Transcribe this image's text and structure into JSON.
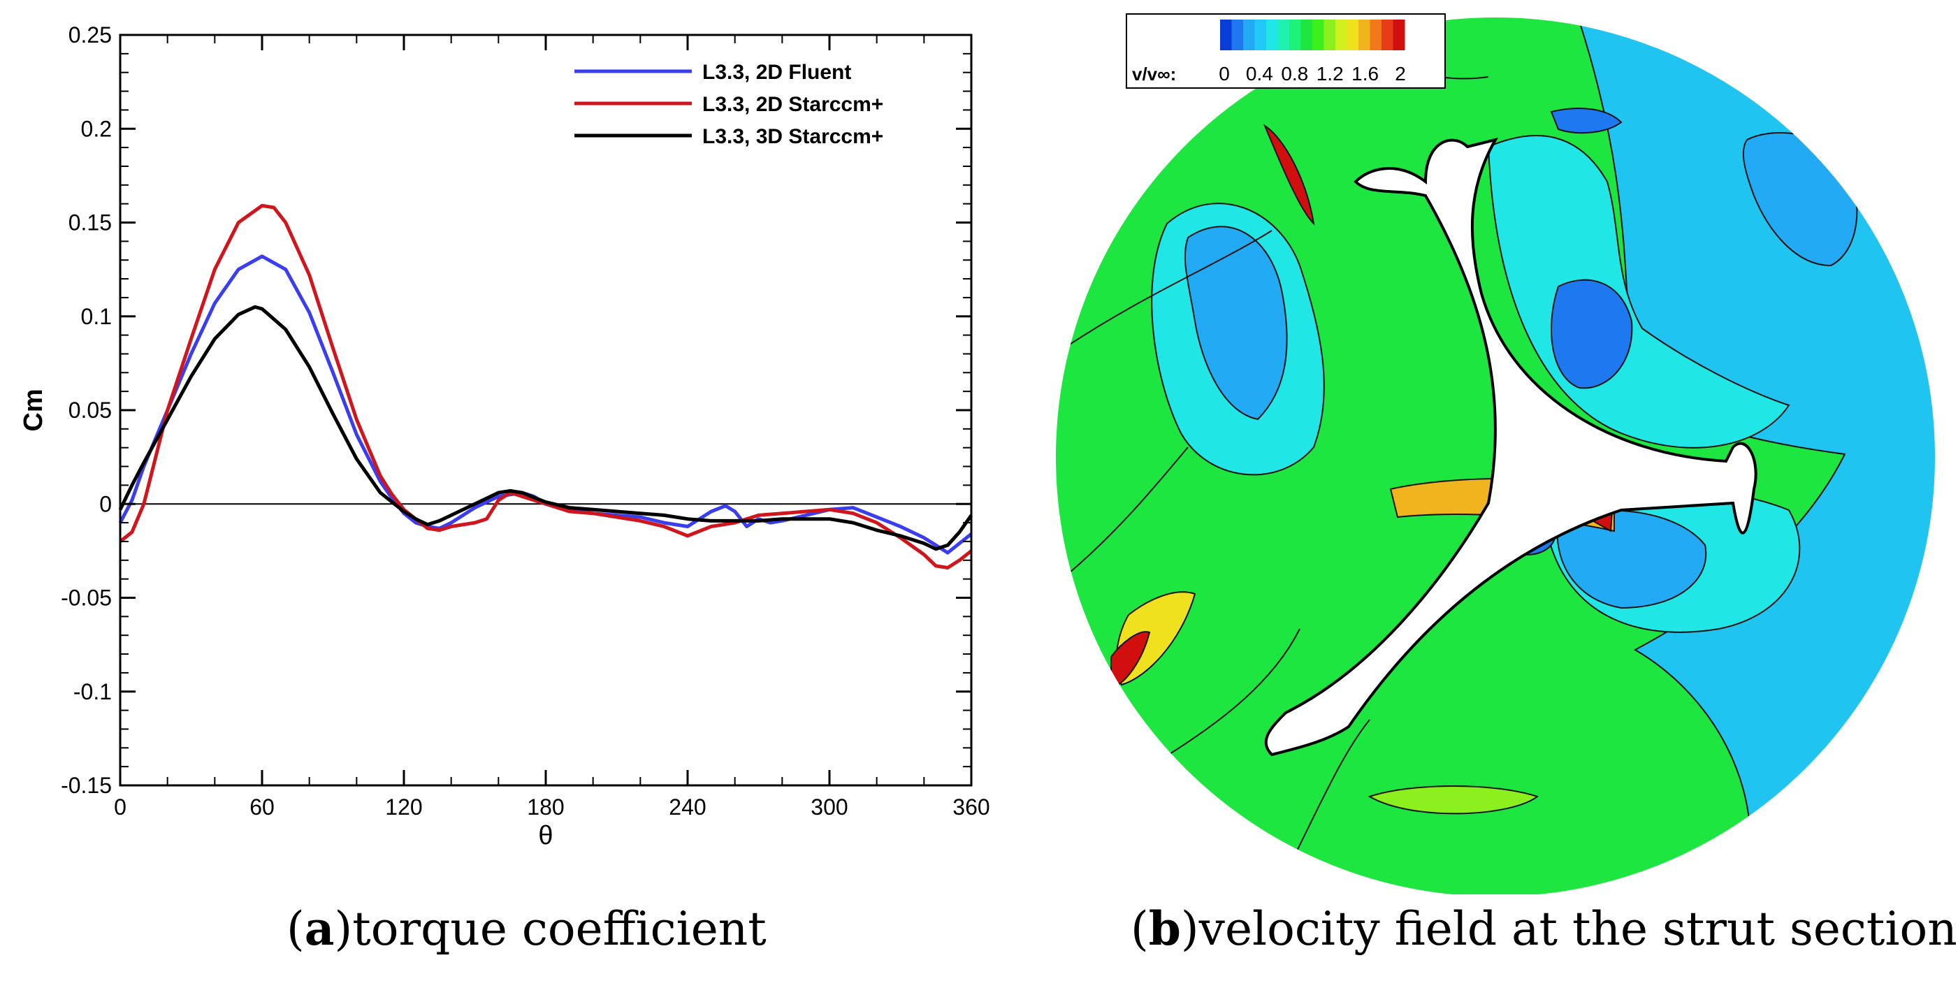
{
  "chart_data": [
    {
      "type": "line",
      "panel_label": "a",
      "caption": "torque coefficient",
      "xlabel": "θ",
      "ylabel": "Cm",
      "xlim": [
        0,
        360
      ],
      "ylim": [
        -0.15,
        0.25
      ],
      "xticks": [
        "0",
        "60",
        "120",
        "180",
        "240",
        "300",
        "360"
      ],
      "yticks": [
        "-0.15",
        "-0.1",
        "-0.05",
        "0",
        "0.05",
        "0.1",
        "0.15",
        "0.2",
        "0.25"
      ],
      "xtick_values": [
        0,
        60,
        120,
        180,
        240,
        300,
        360
      ],
      "ytick_values": [
        -0.15,
        -0.1,
        -0.05,
        0,
        0.05,
        0.1,
        0.15,
        0.2,
        0.25
      ],
      "zero_line": true,
      "legend_position": "top-right",
      "series": [
        {
          "name": "L3.3, 2D Fluent",
          "color": "#3a3df0",
          "x": [
            0,
            5,
            10,
            20,
            30,
            40,
            50,
            60,
            70,
            80,
            90,
            100,
            110,
            115,
            120,
            125,
            130,
            135,
            140,
            150,
            160,
            165,
            170,
            175,
            180,
            190,
            200,
            210,
            220,
            230,
            240,
            245,
            250,
            256,
            260,
            265,
            270,
            275,
            280,
            290,
            300,
            310,
            320,
            330,
            340,
            345,
            350,
            355,
            360
          ],
          "y": [
            -0.01,
            0.002,
            0.02,
            0.05,
            0.08,
            0.107,
            0.125,
            0.132,
            0.125,
            0.102,
            0.07,
            0.037,
            0.012,
            0.003,
            -0.005,
            -0.01,
            -0.012,
            -0.013,
            -0.01,
            -0.002,
            0.004,
            0.005,
            0.006,
            0.004,
            0.0,
            -0.003,
            -0.005,
            -0.006,
            -0.007,
            -0.01,
            -0.012,
            -0.008,
            -0.004,
            -0.001,
            -0.004,
            -0.012,
            -0.008,
            -0.01,
            -0.009,
            -0.006,
            -0.003,
            -0.002,
            -0.007,
            -0.012,
            -0.018,
            -0.022,
            -0.026,
            -0.021,
            -0.016
          ]
        },
        {
          "name": "L3.3, 2D Starccm+",
          "color": "#d0161c",
          "x": [
            0,
            5,
            10,
            15,
            20,
            30,
            40,
            50,
            60,
            65,
            70,
            80,
            90,
            100,
            110,
            115,
            120,
            125,
            130,
            135,
            140,
            150,
            155,
            160,
            165,
            170,
            175,
            180,
            190,
            200,
            210,
            220,
            230,
            240,
            250,
            260,
            270,
            280,
            290,
            300,
            310,
            320,
            330,
            340,
            345,
            350,
            355,
            360
          ],
          "y": [
            -0.02,
            -0.015,
            0.0,
            0.025,
            0.05,
            0.088,
            0.125,
            0.15,
            0.159,
            0.158,
            0.15,
            0.122,
            0.083,
            0.045,
            0.015,
            0.005,
            -0.003,
            -0.008,
            -0.013,
            -0.014,
            -0.012,
            -0.01,
            -0.008,
            0.002,
            0.006,
            0.004,
            0.002,
            0.0,
            -0.004,
            -0.005,
            -0.007,
            -0.009,
            -0.012,
            -0.017,
            -0.012,
            -0.01,
            -0.006,
            -0.005,
            -0.004,
            -0.003,
            -0.005,
            -0.01,
            -0.018,
            -0.027,
            -0.033,
            -0.034,
            -0.03,
            -0.025
          ]
        },
        {
          "name": "L3.3, 3D Starccm+",
          "color": "#000000",
          "x": [
            0,
            5,
            10,
            20,
            30,
            40,
            50,
            57,
            60,
            70,
            80,
            90,
            100,
            110,
            120,
            125,
            130,
            135,
            140,
            150,
            160,
            165,
            170,
            180,
            190,
            200,
            210,
            220,
            230,
            240,
            250,
            260,
            270,
            280,
            290,
            300,
            310,
            320,
            330,
            340,
            345,
            350,
            355,
            360
          ],
          "y": [
            -0.003,
            0.01,
            0.022,
            0.045,
            0.068,
            0.088,
            0.101,
            0.105,
            0.104,
            0.093,
            0.073,
            0.048,
            0.024,
            0.006,
            -0.004,
            -0.008,
            -0.011,
            -0.009,
            -0.006,
            0.0,
            0.006,
            0.007,
            0.006,
            0.001,
            -0.002,
            -0.003,
            -0.004,
            -0.005,
            -0.006,
            -0.008,
            -0.009,
            -0.009,
            -0.009,
            -0.008,
            -0.008,
            -0.008,
            -0.01,
            -0.014,
            -0.017,
            -0.021,
            -0.024,
            -0.022,
            -0.015,
            -0.006
          ]
        }
      ]
    },
    {
      "type": "heatmap",
      "panel_label": "b",
      "caption": "velocity field at the strut section",
      "colorbar_label": "v/v∞:",
      "colorbar_ticks": [
        "0",
        "0.4",
        "0.8",
        "1.2",
        "1.6",
        "2"
      ],
      "colorbar_range": [
        0,
        2
      ],
      "colorbar_colors": [
        "#0a3dd8",
        "#1e78f0",
        "#22aaf5",
        "#1fc8f5",
        "#20e6e6",
        "#1ef0b0",
        "#1ef078",
        "#1ee640",
        "#3cf01e",
        "#8cf01e",
        "#d2f01e",
        "#f0e11e",
        "#f0b41e",
        "#f07819",
        "#e63c19",
        "#d20f0f"
      ]
    }
  ]
}
